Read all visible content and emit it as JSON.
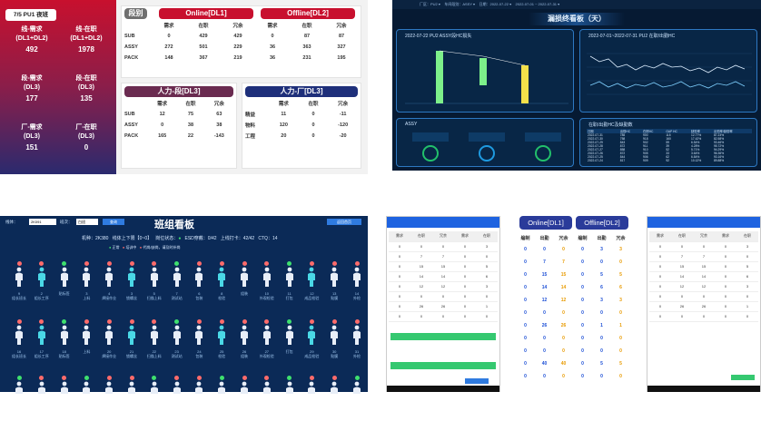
{
  "p1": {
    "badge": "7/5 PU1 夜班",
    "cards": [
      {
        "l1": "线-需求",
        "l2": "(DL1+DL2)",
        "v": "492"
      },
      {
        "l1": "线-在职",
        "l2": "(DL1+DL2)",
        "v": "1978"
      },
      {
        "l1": "段-需求",
        "l2": "(DL3)",
        "v": "177"
      },
      {
        "l1": "段-在职",
        "l2": "(DL3)",
        "v": "135"
      },
      {
        "l1": "厂-需求",
        "l2": "(DL3)",
        "v": "151"
      },
      {
        "l1": "厂-在职",
        "l2": "(DL3)",
        "v": "0"
      }
    ],
    "stage_tag": "段别",
    "online": "Online[DL1]",
    "offline": "Offline[DL2]",
    "h": [
      "需求",
      "在职",
      "冗余"
    ],
    "rows": [
      {
        "n": "SUB",
        "a": [
          "0",
          "429",
          "429"
        ],
        "b": [
          "0",
          "87",
          "87"
        ]
      },
      {
        "n": "ASSY",
        "a": [
          "272",
          "501",
          "229"
        ],
        "b": [
          "36",
          "363",
          "327"
        ]
      },
      {
        "n": "PACK",
        "a": [
          "148",
          "367",
          "219"
        ],
        "b": [
          "36",
          "231",
          "195"
        ]
      }
    ],
    "hr1_title": "人力-段[DL3]",
    "hr1": [
      {
        "n": "SUB",
        "v": [
          "12",
          "75",
          "63"
        ]
      },
      {
        "n": "ASSY",
        "v": [
          "0",
          "38",
          "38"
        ]
      },
      {
        "n": "PACK",
        "v": [
          "165",
          "22",
          "-143"
        ]
      }
    ],
    "hr2_title": "人力-厂[DL3]",
    "hr2": [
      {
        "n": "精益",
        "v": [
          "11",
          "0",
          "-11"
        ]
      },
      {
        "n": "物料",
        "v": [
          "120",
          "0",
          "-120"
        ]
      },
      {
        "n": "工程",
        "v": [
          "20",
          "0",
          "-20"
        ]
      }
    ]
  },
  "p2": {
    "title": "漏损终看板（天）",
    "f1": "2022-07-22 PU2 ASSY段HC损失",
    "f2": "2022-07-01~2022-07-31 PU2 在职/出勤HC",
    "f3": "ASSY",
    "f4": "在职/出勤HC及缺勤数",
    "th": [
      "日期",
      "出勤HC",
      "在职HC",
      "GAP HC",
      "缺勤率",
      "出勤率/缺勤率"
    ],
    "tr": [
      [
        "2022-07-31",
        "785",
        "900",
        "115",
        "12.77%",
        "87.23%"
      ],
      [
        "2022-07-30",
        "758",
        "918",
        "160",
        "17.42%",
        "82.58%"
      ],
      [
        "2022-07-29",
        "843",
        "902",
        "59",
        "6.54%",
        "93.46%"
      ],
      [
        "2022-07-28",
        "872",
        "911",
        "39",
        "4.28%",
        "95.72%"
      ],
      [
        "2022-07-27",
        "858",
        "910",
        "52",
        "5.71%",
        "94.29%"
      ],
      [
        "2022-07-26",
        "872",
        "905",
        "33",
        "3.64%",
        "96.36%"
      ],
      [
        "2022-07-25",
        "844",
        "906",
        "62",
        "6.84%",
        "93.16%"
      ],
      [
        "2022-07-24",
        "817",
        "909",
        "92",
        "10.12%",
        "89.88%"
      ]
    ]
  },
  "p3": {
    "title": "班组看板",
    "f1": "线体：",
    "f1v": "2K091",
    "f2": "班次：",
    "f2v": "白班",
    "q": "查询",
    "b": "返回首页",
    "info": [
      "机种：2K380",
      "线体上下限【0~0】",
      "岗位状态：",
      "ESD穿戴：0/42",
      "上线打卡：42/42",
      "CTQ：14"
    ],
    "legend": [
      "正常",
      "培训中",
      "代岗/缺岗，请及时补岗"
    ],
    "row1": [
      "9",
      "2",
      "",
      "3",
      "4",
      "3",
      "5",
      "7",
      "6",
      "8",
      "",
      "10",
      "11",
      "12",
      "13",
      "14"
    ],
    "row2": [
      "16",
      "17",
      "18",
      "",
      "20",
      "21",
      "22",
      "23",
      "24",
      "25",
      "26",
      "27",
      "",
      "29",
      "30",
      "31"
    ],
    "names": [
      "组长班长",
      "组长工序",
      "贴标签",
      "上料",
      "焊接作业",
      "锁螺丝",
      "扫描上料",
      "测试站",
      "包装",
      "检验",
      "组装",
      "外观检验",
      "打包",
      "成品检验",
      "贴膜",
      "外检"
    ]
  },
  "p4": {
    "phone1": {
      "tabs": [
        "需求",
        "在职",
        "冗余"
      ],
      "labs": [
        "月报",
        "日报"
      ]
    },
    "mid_online": "Online[DL1]",
    "mid_offline": "Offline[DL2]",
    "mid_h": [
      "编制",
      "出勤",
      "冗余",
      "编制",
      "出勤",
      "冗余"
    ],
    "mid_rows": [
      [
        "0",
        "0",
        "0",
        "0",
        "3",
        "3"
      ],
      [
        "0",
        "7",
        "7",
        "0",
        "0",
        "0"
      ],
      [
        "0",
        "15",
        "15",
        "0",
        "5",
        "5"
      ],
      [
        "0",
        "14",
        "14",
        "0",
        "6",
        "6"
      ],
      [
        "0",
        "12",
        "12",
        "0",
        "3",
        "3"
      ],
      [
        "0",
        "0",
        "0",
        "0",
        "0",
        "0"
      ],
      [
        "0",
        "26",
        "26",
        "0",
        "1",
        "1"
      ],
      [
        "0",
        "0",
        "0",
        "0",
        "0",
        "0"
      ],
      [
        "0",
        "0",
        "0",
        "0",
        "0",
        "0"
      ],
      [
        "0",
        "40",
        "40",
        "0",
        "5",
        "5"
      ],
      [
        "0",
        "0",
        "0",
        "0",
        "0",
        "0"
      ]
    ]
  }
}
